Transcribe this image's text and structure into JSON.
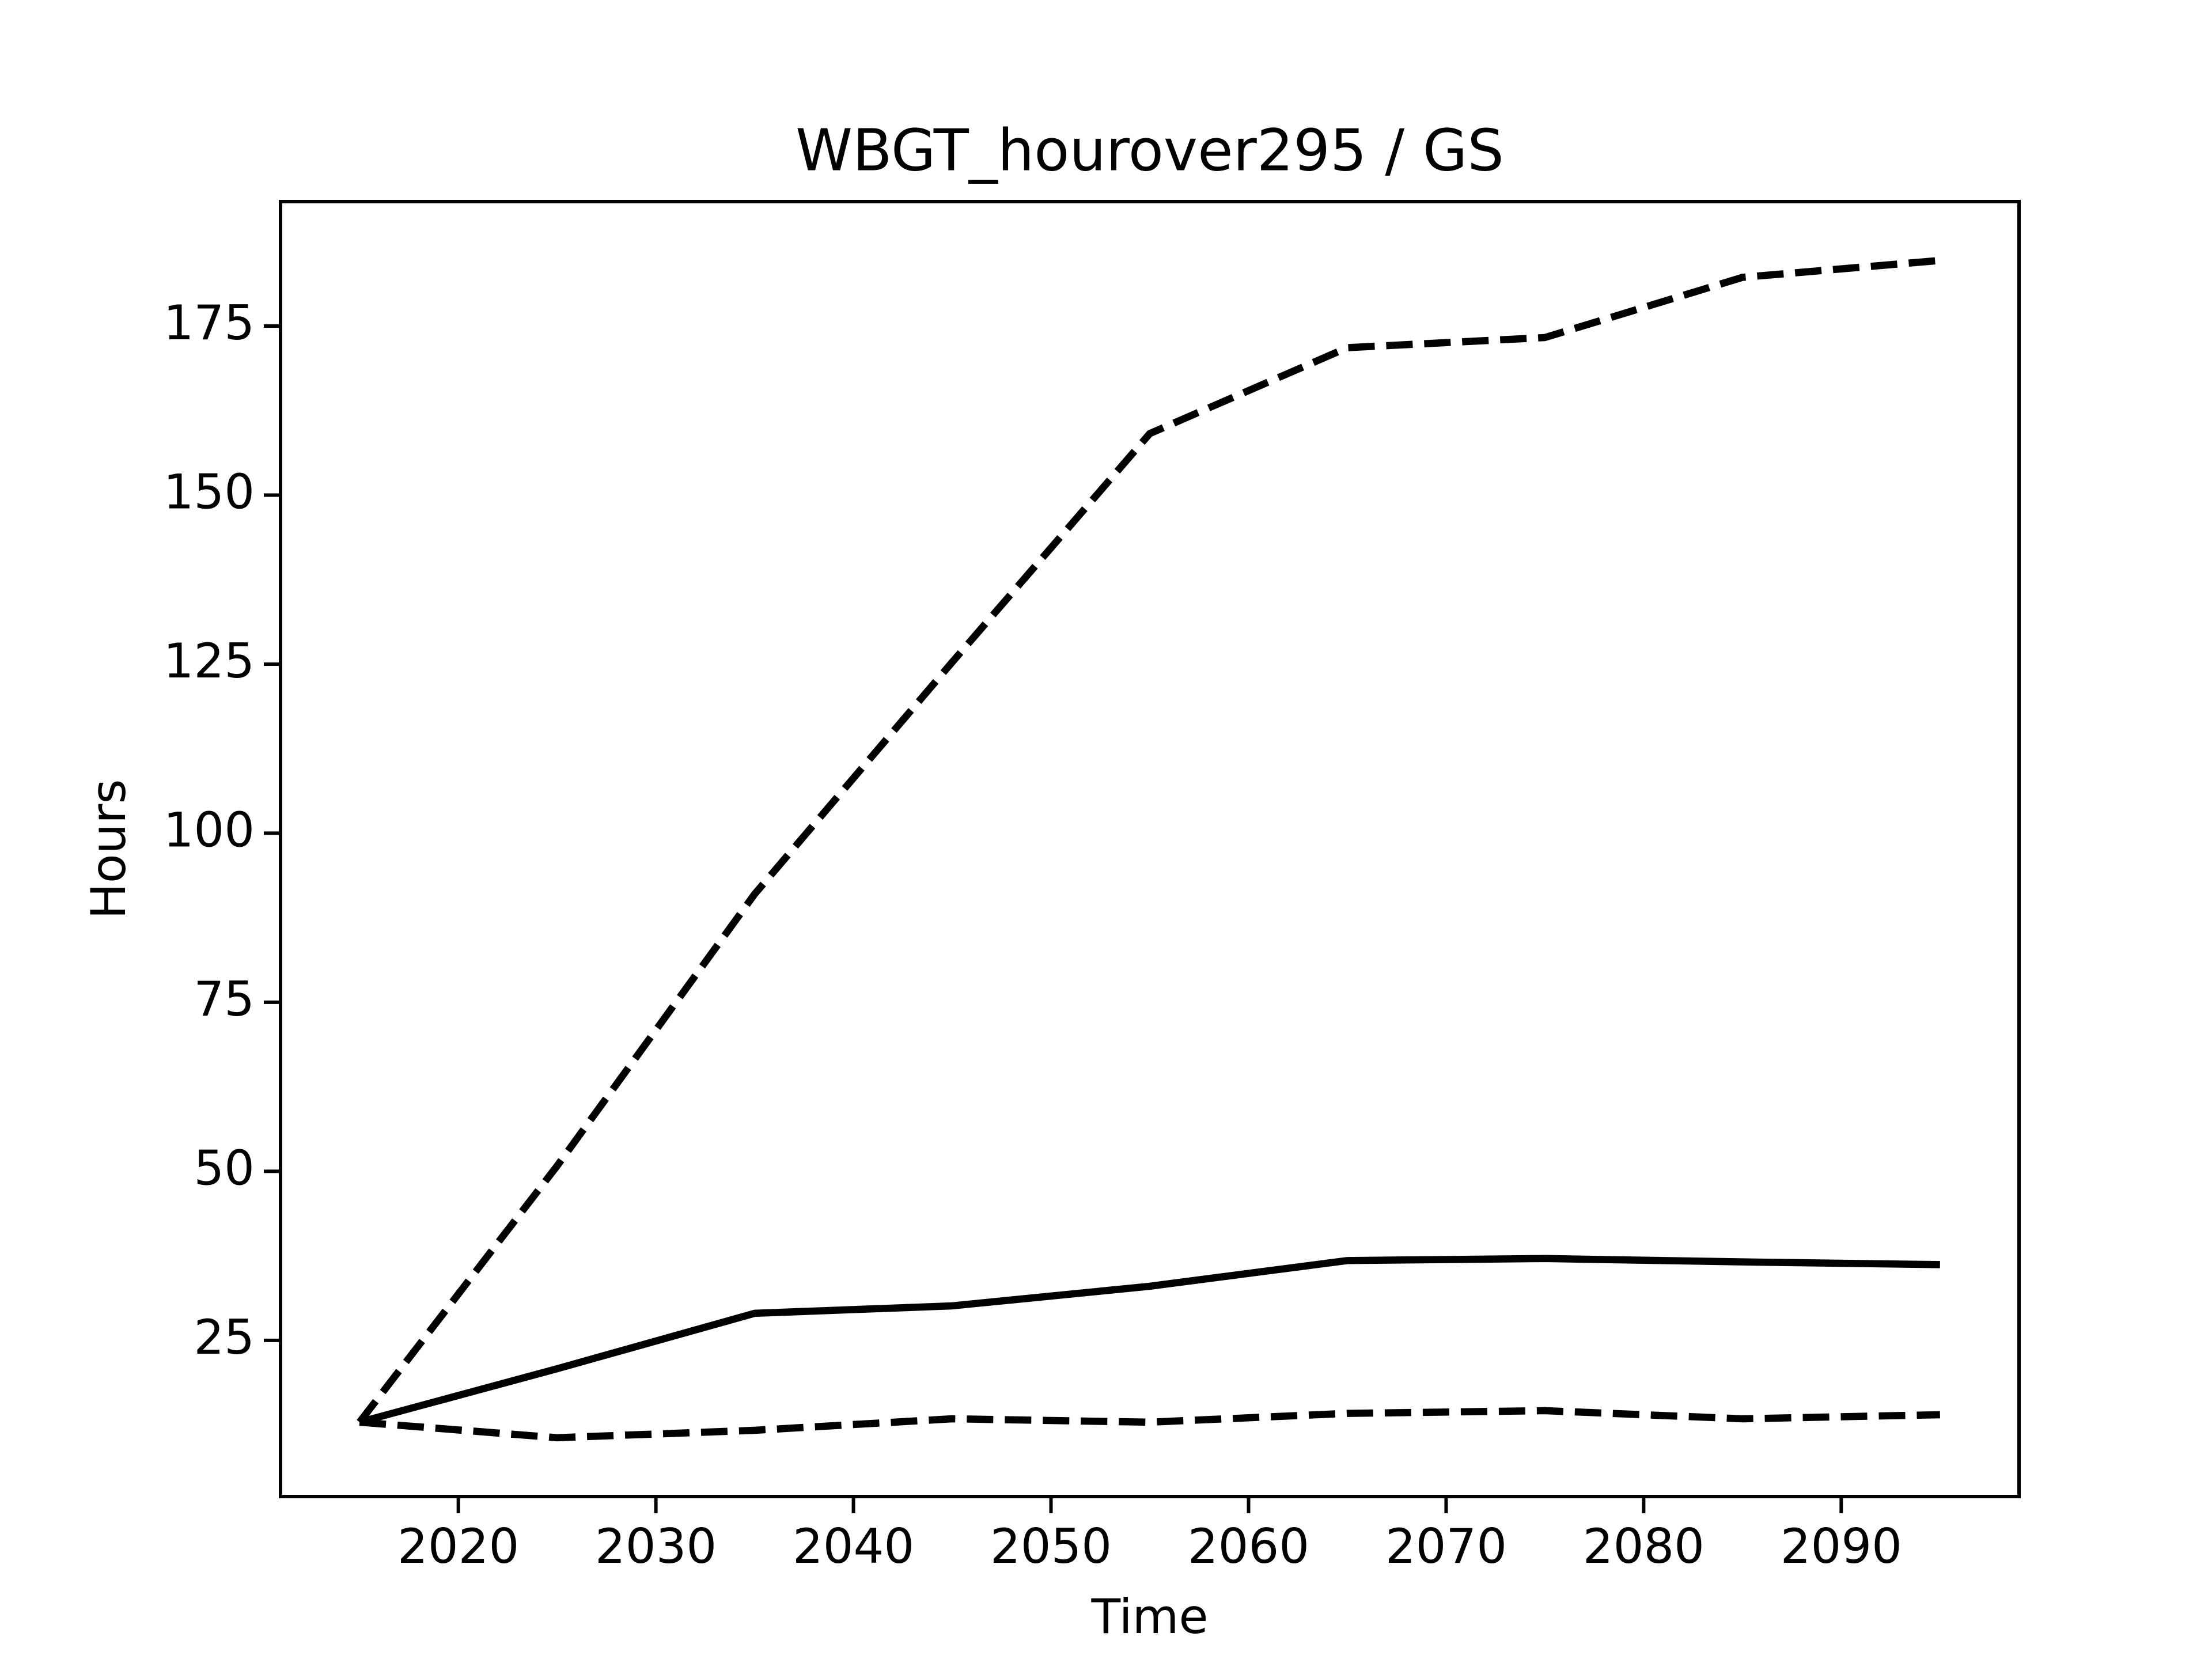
{
  "chart_data": {
    "type": "line",
    "title": "WBGT_hourover295 / GS",
    "x_label": "Time",
    "y_label": "Hours",
    "x": [
      2015,
      2025,
      2035,
      2045,
      2055,
      2065,
      2075,
      2085,
      2095
    ],
    "series": [
      {
        "color": "#000000",
        "linestyle": "dashed",
        "values": [
          12.9,
          50.8,
          91.0,
          125.3,
          159.1,
          171.8,
          173.3,
          182.2,
          184.7
        ]
      },
      {
        "color": "#000000",
        "linestyle": "solid",
        "values": [
          12.9,
          20.8,
          29.0,
          30.1,
          33.0,
          36.8,
          37.1,
          36.6,
          36.2
        ]
      },
      {
        "color": "#000000",
        "linestyle": "dashed",
        "values": [
          12.9,
          10.6,
          11.7,
          13.4,
          12.9,
          14.2,
          14.6,
          13.4,
          14.0
        ]
      }
    ],
    "xlim": [
      2011,
      2099
    ],
    "xticks": [
      2020,
      2030,
      2040,
      2050,
      2060,
      2070,
      2080,
      2090
    ],
    "ylim": [
      1.9,
      193.4
    ],
    "yticks": [
      25,
      50,
      75,
      100,
      125,
      150,
      175
    ],
    "grid": false
  }
}
